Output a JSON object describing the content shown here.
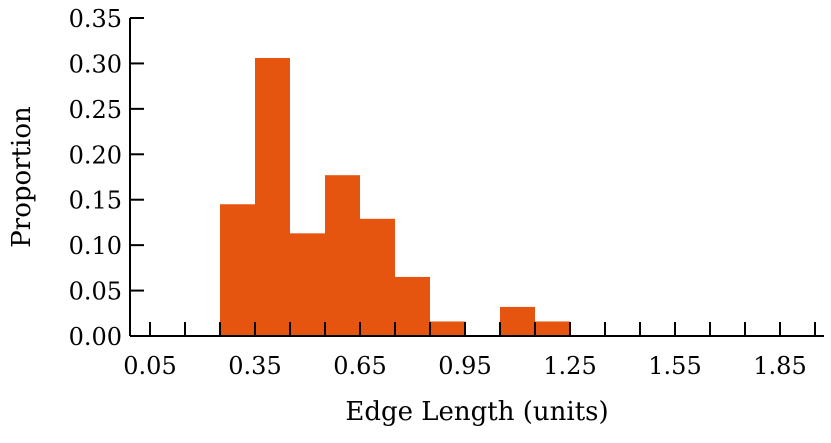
{
  "chart_data": {
    "type": "bar",
    "xlabel": "Edge Length (units)",
    "ylabel": "Proportion",
    "xlim": [
      0.05,
      1.95
    ],
    "ylim": [
      0,
      0.35
    ],
    "x_ticks": [
      "0.05",
      "0.35",
      "0.65",
      "0.95",
      "1.25",
      "1.55",
      "1.85"
    ],
    "y_ticks": [
      "0.00",
      "0.05",
      "0.10",
      "0.15",
      "0.20",
      "0.25",
      "0.30",
      "0.35"
    ],
    "bin_width": 0.1,
    "bins": [
      {
        "start": 0.05,
        "end": 0.15,
        "value": 0.0
      },
      {
        "start": 0.15,
        "end": 0.25,
        "value": 0.0
      },
      {
        "start": 0.25,
        "end": 0.35,
        "value": 0.145
      },
      {
        "start": 0.35,
        "end": 0.45,
        "value": 0.306
      },
      {
        "start": 0.45,
        "end": 0.55,
        "value": 0.113
      },
      {
        "start": 0.55,
        "end": 0.65,
        "value": 0.177
      },
      {
        "start": 0.65,
        "end": 0.75,
        "value": 0.129
      },
      {
        "start": 0.75,
        "end": 0.85,
        "value": 0.065
      },
      {
        "start": 0.85,
        "end": 0.95,
        "value": 0.016
      },
      {
        "start": 0.95,
        "end": 1.05,
        "value": 0.0
      },
      {
        "start": 1.05,
        "end": 1.15,
        "value": 0.032
      },
      {
        "start": 1.15,
        "end": 1.25,
        "value": 0.016
      },
      {
        "start": 1.25,
        "end": 1.35,
        "value": 0.0
      },
      {
        "start": 1.35,
        "end": 1.45,
        "value": 0.0
      },
      {
        "start": 1.45,
        "end": 1.55,
        "value": 0.0
      },
      {
        "start": 1.55,
        "end": 1.65,
        "value": 0.0
      },
      {
        "start": 1.65,
        "end": 1.75,
        "value": 0.0
      },
      {
        "start": 1.75,
        "end": 1.85,
        "value": 0.0
      },
      {
        "start": 1.85,
        "end": 1.95,
        "value": 0.0
      }
    ],
    "bar_color": "#E5550F",
    "grid": false,
    "legend": "none"
  }
}
